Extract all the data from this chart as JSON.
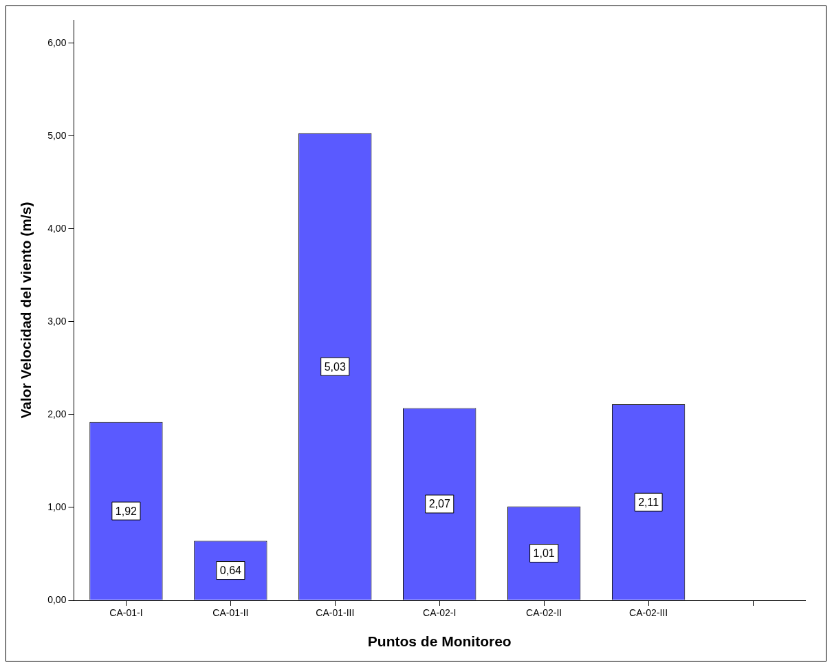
{
  "chart_data": {
    "type": "bar",
    "xlabel": "Puntos de Monitoreo",
    "ylabel": "Valor Velocidad del viento (m/s)",
    "categories": [
      "CA-01-I",
      "CA-01-II",
      "CA-01-III",
      "CA-02-I",
      "CA-02-II",
      "CA-02-III",
      null
    ],
    "values": [
      1.92,
      0.64,
      5.03,
      2.07,
      1.01,
      2.11,
      null
    ],
    "value_labels": [
      "1,92",
      "0,64",
      "5,03",
      "2,07",
      "1,01",
      "2,11",
      null
    ],
    "color": "#5a5aff",
    "ylim": [
      0,
      6.25
    ],
    "yticks": [
      {
        "value": 0,
        "label": "0,00"
      },
      {
        "value": 1,
        "label": "1,00"
      },
      {
        "value": 2,
        "label": "2,00"
      },
      {
        "value": 3,
        "label": "3,00"
      },
      {
        "value": 4,
        "label": "4,00"
      },
      {
        "value": 5,
        "label": "5,00"
      },
      {
        "value": 6,
        "label": "6,00"
      }
    ],
    "grid": false,
    "legend": false
  }
}
